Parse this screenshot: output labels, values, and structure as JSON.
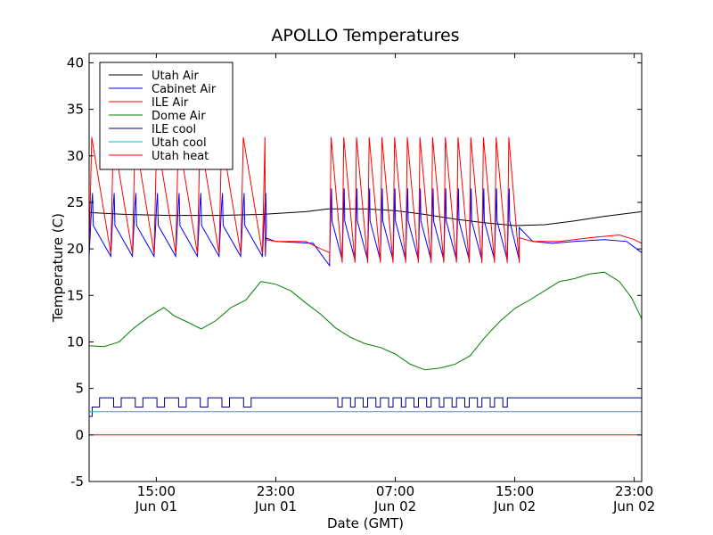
{
  "chart_data": {
    "type": "line",
    "title": "APOLLO Temperatures",
    "xlabel": "Date (GMT)",
    "ylabel": "Temperature (C)",
    "xunits": "hours since Jun 01 00:00 GMT",
    "xlim": [
      10.5,
      47.5
    ],
    "ylim": [
      -5,
      41
    ],
    "grid": false,
    "legend_position": "top-left",
    "yticks": [
      -5,
      0,
      5,
      10,
      15,
      20,
      25,
      30,
      35,
      40
    ],
    "ytick_labels": [
      "-5",
      "0",
      "5",
      "10",
      "15",
      "20",
      "25",
      "30",
      "35",
      "40"
    ],
    "xticks": [
      {
        "x": 15,
        "time": "15:00",
        "date": "Jun 01"
      },
      {
        "x": 23,
        "time": "23:00",
        "date": "Jun 01"
      },
      {
        "x": 31,
        "time": "07:00",
        "date": "Jun 02"
      },
      {
        "x": 39,
        "time": "15:00",
        "date": "Jun 02"
      },
      {
        "x": 47,
        "time": "23:00",
        "date": "Jun 02"
      }
    ],
    "series": [
      {
        "name": "Utah Air",
        "color": "#000000",
        "kind": "curve",
        "points": [
          [
            10.5,
            23.9
          ],
          [
            13,
            23.7
          ],
          [
            16,
            23.6
          ],
          [
            19,
            23.6
          ],
          [
            22,
            23.7
          ],
          [
            25,
            24.0
          ],
          [
            26.5,
            24.3
          ],
          [
            29,
            24.3
          ],
          [
            31,
            24.1
          ],
          [
            33,
            23.7
          ],
          [
            35,
            23.2
          ],
          [
            37,
            22.8
          ],
          [
            39,
            22.5
          ],
          [
            41,
            22.6
          ],
          [
            43,
            23.0
          ],
          [
            45,
            23.5
          ],
          [
            47.5,
            24.0
          ]
        ]
      },
      {
        "name": "Cabinet Air",
        "color": "#0000ff",
        "kind": "sawtooth",
        "segments": [
          {
            "start": 10.5,
            "end": 22.3,
            "period": 1.45,
            "low": 19.2,
            "high": 26.0,
            "flat_high": true
          },
          {
            "start": 22.3,
            "end": 26.0,
            "flat": [
              [
                22.3,
                21.2
              ],
              [
                23,
                20.8
              ],
              [
                25.5,
                20.6
              ],
              [
                26,
                19.5
              ],
              [
                26.6,
                18.2
              ]
            ]
          },
          {
            "start": 26.6,
            "end": 39.3,
            "period": 0.85,
            "low": 18.8,
            "high": 26.5,
            "flat_high": true
          },
          {
            "start": 39.3,
            "end": 47.5,
            "flat": [
              [
                39.3,
                22.3
              ],
              [
                40.2,
                20.8
              ],
              [
                41.5,
                20.6
              ],
              [
                43,
                20.8
              ],
              [
                45,
                21.0
              ],
              [
                46.5,
                20.8
              ],
              [
                47.5,
                19.6
              ]
            ]
          }
        ]
      },
      {
        "name": "ILE Air",
        "color": "#ff0000",
        "kind": "sawtooth",
        "segments": [
          {
            "start": 10.5,
            "end": 22.3,
            "period": 1.45,
            "low": 19.5,
            "high": 32.0,
            "flat_high": false
          },
          {
            "start": 22.3,
            "end": 26.0,
            "flat": [
              [
                22.3,
                21.0
              ],
              [
                23,
                20.8
              ],
              [
                25,
                20.8
              ],
              [
                26,
                20.0
              ],
              [
                26.6,
                19.6
              ]
            ]
          },
          {
            "start": 26.6,
            "end": 39.3,
            "period": 0.85,
            "low": 18.5,
            "high": 32.0,
            "flat_high": false
          },
          {
            "start": 39.3,
            "end": 47.5,
            "flat": [
              [
                39.3,
                21.2
              ],
              [
                40.2,
                20.8
              ],
              [
                42,
                20.8
              ],
              [
                44,
                21.2
              ],
              [
                46,
                21.5
              ],
              [
                47,
                21.0
              ],
              [
                47.5,
                20.6
              ]
            ]
          }
        ]
      },
      {
        "name": "Dome Air",
        "color": "#008000",
        "kind": "curve",
        "points": [
          [
            10.5,
            9.6
          ],
          [
            11.5,
            9.5
          ],
          [
            12.5,
            10.0
          ],
          [
            13.5,
            11.5
          ],
          [
            14.5,
            12.7
          ],
          [
            15.5,
            13.7
          ],
          [
            16.2,
            12.8
          ],
          [
            17,
            12.2
          ],
          [
            18,
            11.4
          ],
          [
            19,
            12.3
          ],
          [
            20,
            13.7
          ],
          [
            21,
            14.5
          ],
          [
            22,
            16.5
          ],
          [
            23,
            16.2
          ],
          [
            24,
            15.5
          ],
          [
            25,
            14.2
          ],
          [
            26,
            13.0
          ],
          [
            27,
            11.5
          ],
          [
            28,
            10.5
          ],
          [
            29,
            9.8
          ],
          [
            30,
            9.4
          ],
          [
            31,
            8.7
          ],
          [
            32,
            7.6
          ],
          [
            33,
            7.0
          ],
          [
            34,
            7.2
          ],
          [
            35,
            7.6
          ],
          [
            36,
            8.5
          ],
          [
            37,
            10.5
          ],
          [
            38,
            12.2
          ],
          [
            39,
            13.6
          ],
          [
            40,
            14.5
          ],
          [
            41,
            15.5
          ],
          [
            42,
            16.5
          ],
          [
            43,
            16.8
          ],
          [
            44,
            17.3
          ],
          [
            45,
            17.5
          ],
          [
            46,
            16.5
          ],
          [
            46.8,
            14.8
          ],
          [
            47.5,
            12.5
          ]
        ]
      },
      {
        "name": "ILE cool",
        "color": "#000080",
        "kind": "square",
        "pre": [
          [
            10.5,
            2.0
          ],
          [
            10.7,
            2.0
          ],
          [
            10.7,
            3.0
          ],
          [
            11.2,
            3.0
          ],
          [
            11.2,
            4.0
          ]
        ],
        "segments": [
          {
            "start": 11.2,
            "end": 22.0,
            "period": 1.45,
            "low": 3.0,
            "high": 4.0,
            "low_frac": 0.35
          },
          {
            "start": 26.6,
            "end": 39.0,
            "period": 0.85,
            "low": 3.0,
            "high": 4.0,
            "low_frac": 0.35
          }
        ]
      },
      {
        "name": "Utah cool",
        "color": "#00bfbf",
        "kind": "flat",
        "value": 2.5
      },
      {
        "name": "Utah heat",
        "color": "#ff0000",
        "kind": "flat",
        "value": 0.0
      }
    ]
  }
}
